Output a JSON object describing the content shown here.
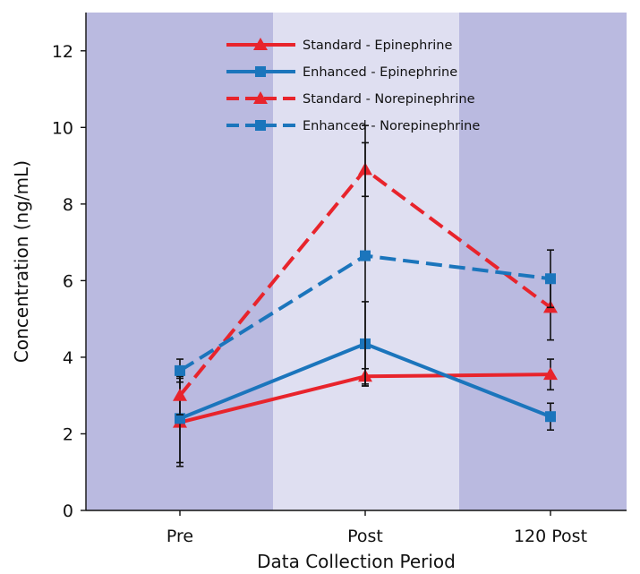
{
  "chart_data": {
    "type": "line",
    "title": "",
    "xlabel": "Data Collection Period",
    "ylabel": "Concentration (ng/mL)",
    "categories": [
      "Pre",
      "Post",
      "120 Post"
    ],
    "ylim": [
      0,
      13
    ],
    "yticks": [
      0,
      2,
      4,
      6,
      8,
      10,
      12
    ],
    "grid": false,
    "legend_position": "top-center",
    "background_bands": [
      {
        "from": "start",
        "to": "Pre",
        "color": "#BABAE0"
      },
      {
        "from": "Pre",
        "to": "Post",
        "color": "#DFDFF1"
      },
      {
        "from": "Post",
        "to": "end",
        "color": "#BABAE0"
      }
    ],
    "series": [
      {
        "name": "Standard - Epinephrine",
        "color": "#E8242C",
        "dash": "solid",
        "marker": "triangle",
        "values": [
          2.3,
          3.5,
          3.55
        ],
        "error": [
          1.15,
          0.2,
          0.4
        ]
      },
      {
        "name": "Enhanced - Epinephrine",
        "color": "#1B75BC",
        "dash": "solid",
        "marker": "square",
        "values": [
          2.4,
          4.35,
          2.45
        ],
        "error": [
          1.15,
          1.1,
          0.35
        ]
      },
      {
        "name": "Standard - Norepinephrine",
        "color": "#E8242C",
        "dash": "dashed",
        "marker": "triangle",
        "values": [
          3.0,
          8.9,
          5.3
        ],
        "error": [
          0.5,
          0.7,
          0.85
        ]
      },
      {
        "name": "Enhanced - Norepinephrine",
        "color": "#1B75BC",
        "dash": "dashed",
        "marker": "square",
        "values": [
          3.65,
          6.65,
          6.05
        ],
        "error": [
          0.3,
          3.4,
          0.75
        ]
      }
    ]
  }
}
